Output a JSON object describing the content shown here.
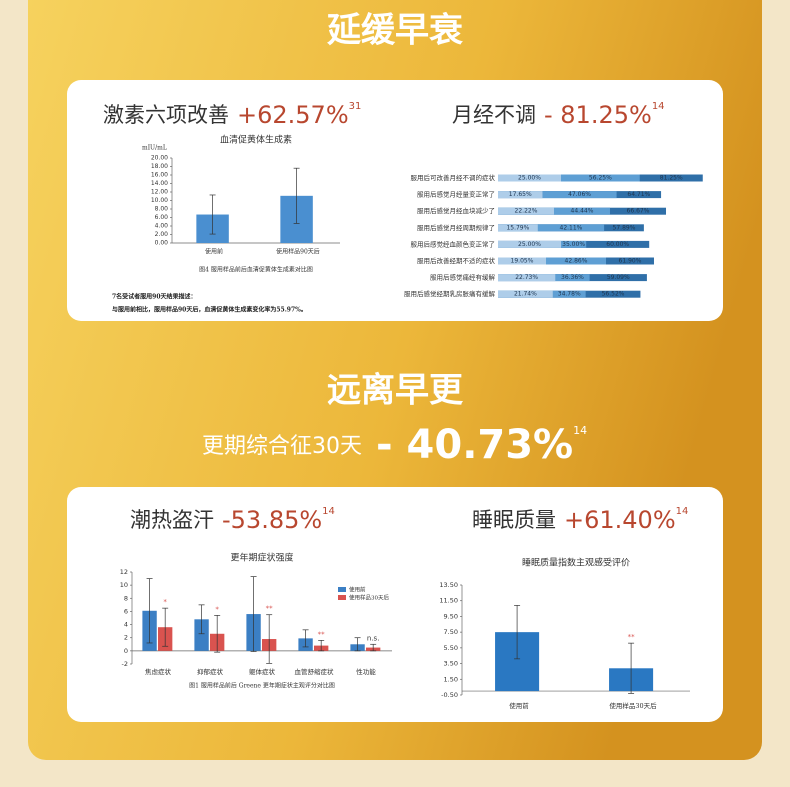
{
  "section1": {
    "title": "延缓早衰",
    "left": {
      "label": "激素六项改善",
      "stat": "+62.57%",
      "ref": "31",
      "chart": {
        "type": "bar",
        "title": "血清促黄体生成素",
        "y_label": "mIU/mL",
        "categories": [
          "使用前",
          "使用样品90天后"
        ],
        "series": [
          {
            "name": "使用前",
            "color": "#4a8fd0",
            "values": [
              6.7,
              11.1
            ],
            "errors": [
              4.6,
              6.5
            ]
          }
        ],
        "ylim": [
          0,
          20
        ],
        "yticks": [
          {
            "value": 0,
            "label": "0.00"
          },
          {
            "value": 2,
            "label": "2.00"
          },
          {
            "value": 4,
            "label": "4.00"
          },
          {
            "value": 6,
            "label": "6.00"
          },
          {
            "value": 8,
            "label": "8.00"
          },
          {
            "value": 10,
            "label": "10.00"
          },
          {
            "value": 12,
            "label": "12.00"
          },
          {
            "value": 14,
            "label": "14.00"
          },
          {
            "value": 16,
            "label": "16.00"
          },
          {
            "value": 18,
            "label": "18.00"
          },
          {
            "value": 20,
            "label": "20.00"
          }
        ],
        "legend": false,
        "caption": "图4 服用样品前后血清促黄体生成素对比图",
        "notes": [
          "7名受试者服用90天结果描述：",
          "与服用前相比，服用样品90天后，血清促黄体生成素变化率为55.97%。"
        ]
      }
    },
    "right": {
      "label": "月经不调",
      "stat": "- 81.25%",
      "ref": "14",
      "chart": {
        "type": "hbar",
        "categories": [
          "服用后可改善月经不调的症状",
          "服用后感觉月经量变正常了",
          "服用后感觉月经血块减少了",
          "服用后感觉月经周期规律了",
          "服用后感觉经血颜色变正常了",
          "服用后改善经期不适的症状",
          "服用后感觉痛经有缓解",
          "服用后感觉经期乳房胀痛有缓解"
        ],
        "series": [
          {
            "color": "#2f6fa8",
            "values": [
              81.25,
              64.71,
              66.67,
              57.89,
              60.0,
              61.9,
              59.09,
              56.52
            ],
            "value_labels": [
              "81.25%",
              "64.71%",
              "66.67%",
              "57.89%",
              "60.00%",
              "61.90%",
              "59.09%",
              "56.52%"
            ]
          },
          {
            "color": "#5e9fd4",
            "values": [
              56.25,
              47.06,
              44.44,
              42.11,
              35.0,
              42.86,
              36.36,
              34.78
            ],
            "value_labels": [
              "56.25%",
              "47.06%",
              "44.44%",
              "42.11%",
              "35.00%",
              "42.86%",
              "36.36%",
              "34.78%"
            ]
          },
          {
            "color": "#aecde9",
            "values": [
              25.0,
              17.65,
              22.22,
              15.79,
              25.0,
              19.05,
              22.73,
              21.74
            ],
            "value_labels": [
              "25.00%",
              "17.65%",
              "22.22%",
              "15.79%",
              "25.00%",
              "19.05%",
              "22.73%",
              "21.74%"
            ]
          }
        ],
        "xlim": [
          0,
          100
        ]
      }
    }
  },
  "section2": {
    "title": "远离早更",
    "headline": {
      "label": "更期综合征30天",
      "stat": "- 40.73%",
      "ref": "14"
    },
    "left": {
      "label": "潮热盗汗",
      "stat": "-53.85%",
      "ref": "14",
      "chart": {
        "type": "bar",
        "title": "更年期症状强度",
        "categories": [
          "焦虑症状",
          "抑郁症状",
          "躯体症状",
          "血管舒缩症状",
          "性功能"
        ],
        "series": [
          {
            "name": "使用前",
            "color": "#3b7fc4",
            "values": [
              6.1,
              4.8,
              5.6,
              1.9,
              1.0
            ],
            "errors": [
              4.9,
              2.2,
              5.7,
              1.3,
              1.0
            ]
          },
          {
            "name": "使用样品30天后",
            "color": "#d9534f",
            "values": [
              3.6,
              2.6,
              1.8,
              0.8,
              0.5
            ],
            "errors": [
              2.9,
              2.8,
              3.7,
              0.8,
              0.5
            ],
            "marks": [
              "*",
              "*",
              "**",
              "**",
              "n.s."
            ]
          }
        ],
        "ylim": [
          -2,
          12
        ],
        "yticks": [
          -2,
          0,
          2,
          4,
          6,
          8,
          10,
          12
        ],
        "legend": true,
        "caption": "图1 服用样品前后 Greene 更年期症状主观评分对比图"
      }
    },
    "right": {
      "label": "睡眠质量",
      "stat": "+61.40%",
      "ref": "14",
      "chart": {
        "type": "bar",
        "title": "睡眠质量指数主观感受评价",
        "categories": [
          "使用前",
          "使用样品30天后"
        ],
        "series": [
          {
            "name": "使用前",
            "color": "#2a78c2",
            "values": [
              7.5,
              2.9
            ],
            "errors": [
              3.4,
              3.2
            ],
            "marks": [
              null,
              "**"
            ]
          }
        ],
        "ylim": [
          -0.5,
          13.5
        ],
        "yticks": [
          {
            "value": -0.5,
            "label": "-0.50"
          },
          {
            "value": 1.5,
            "label": "1.50"
          },
          {
            "value": 3.5,
            "label": "3.50"
          },
          {
            "value": 5.5,
            "label": "5.50"
          },
          {
            "value": 7.5,
            "label": "7.50"
          },
          {
            "value": 9.5,
            "label": "9.50"
          },
          {
            "value": 11.5,
            "label": "11.50"
          },
          {
            "value": 13.5,
            "label": "13.50"
          }
        ],
        "legend": false
      }
    }
  }
}
